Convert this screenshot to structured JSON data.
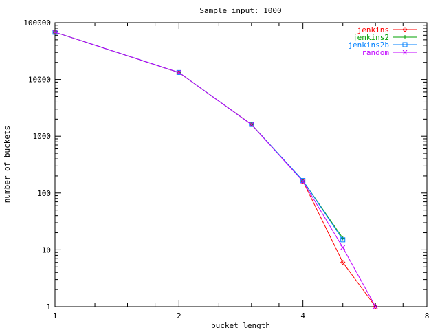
{
  "chart_data": {
    "type": "line",
    "title": "Sample input: 1000",
    "xlabel": "bucket length",
    "ylabel": "number of buckets",
    "x_scale": "log2",
    "y_scale": "log10",
    "xlim": [
      1,
      8
    ],
    "ylim": [
      1,
      100000
    ],
    "x_ticks": [
      1,
      2,
      4,
      8
    ],
    "y_ticks": [
      1,
      10,
      100,
      1000,
      10000,
      100000
    ],
    "grid": false,
    "legend_position": "top-right",
    "series": [
      {
        "name": "jenkins",
        "color": "#ff0000",
        "marker": "diamond",
        "x": [
          1,
          2,
          3,
          4,
          5,
          6
        ],
        "y": [
          68000,
          13200,
          1620,
          162,
          6,
          1
        ]
      },
      {
        "name": "jenkins2",
        "color": "#00a000",
        "marker": "plus",
        "x": [
          1,
          2,
          3,
          4,
          5
        ],
        "y": [
          68000,
          13300,
          1610,
          165,
          16
        ]
      },
      {
        "name": "jenkins2b",
        "color": "#0080ff",
        "marker": "square",
        "x": [
          1,
          2,
          3,
          4,
          5
        ],
        "y": [
          68000,
          13300,
          1610,
          166,
          15
        ]
      },
      {
        "name": "random",
        "color": "#c000ff",
        "marker": "cross",
        "x": [
          1,
          2,
          3,
          4,
          5,
          6
        ],
        "y": [
          68000,
          13300,
          1600,
          160,
          11,
          1
        ]
      }
    ]
  }
}
